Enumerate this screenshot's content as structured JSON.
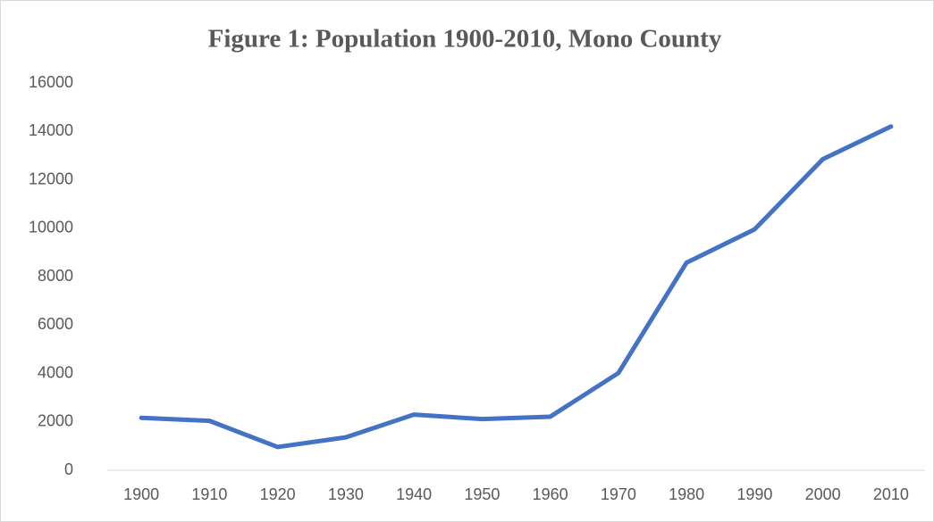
{
  "chart_data": {
    "type": "line",
    "title": "Figure 1: Population 1900-2010, Mono County",
    "categories": [
      "1900",
      "1910",
      "1920",
      "1930",
      "1940",
      "1950",
      "1960",
      "1970",
      "1980",
      "1990",
      "2000",
      "2010"
    ],
    "values": [
      2167,
      2042,
      960,
      1360,
      2299,
      2115,
      2213,
      4016,
      8577,
      9956,
      12853,
      14202
    ],
    "color": "#4472c4",
    "ylim": [
      0,
      16000
    ],
    "yticks": [
      0,
      2000,
      4000,
      6000,
      8000,
      10000,
      12000,
      14000,
      16000
    ],
    "grid": false
  }
}
